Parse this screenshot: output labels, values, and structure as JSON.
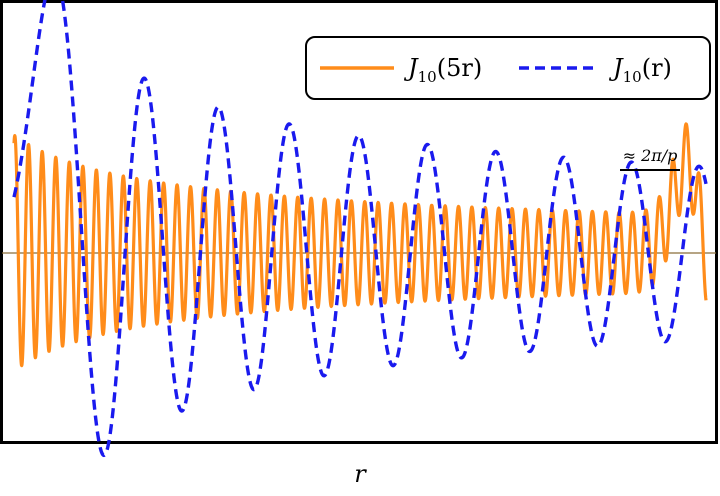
{
  "chart_data": {
    "type": "line",
    "xlabel": "r",
    "ylabel": "",
    "xlim": [
      8,
      73
    ],
    "ylim": [
      -0.2,
      0.25
    ],
    "grid": false,
    "axis_line_y": 0,
    "legend_position": "top-right",
    "series": [
      {
        "name": "J_10(5r)",
        "function": "J_10(5r)",
        "order": 10,
        "scale": 5,
        "color": "#ff8c1a",
        "line_style": "solid",
        "x_range": [
          8,
          73
        ],
        "sample_points": [
          {
            "x": 10.6,
            "y": 0.0
          },
          {
            "x": 11.1,
            "y": 0.0
          },
          {
            "x": 11.6,
            "y": 0.25
          },
          {
            "x": 12.2,
            "y": -0.18
          },
          {
            "x": 15.0,
            "y": 0.1
          },
          {
            "x": 25.0,
            "y": -0.07
          },
          {
            "x": 40.0,
            "y": 0.05
          },
          {
            "x": 60.0,
            "y": -0.04
          },
          {
            "x": 72.0,
            "y": 0.03
          }
        ]
      },
      {
        "name": "J_10(r)",
        "function": "J_10(r)",
        "order": 10,
        "scale": 1,
        "color": "#1a1aee",
        "line_style": "dashed",
        "x_range": [
          8,
          73
        ],
        "sample_points": [
          {
            "x": 12.0,
            "y": 0.0
          },
          {
            "x": 19.0,
            "y": 0.25
          },
          {
            "x": 24.3,
            "y": -0.18
          },
          {
            "x": 30.0,
            "y": 0.15
          },
          {
            "x": 35.0,
            "y": -0.14
          },
          {
            "x": 42.0,
            "y": 0.11
          },
          {
            "x": 50.0,
            "y": -0.09
          },
          {
            "x": 60.0,
            "y": 0.08
          },
          {
            "x": 72.0,
            "y": -0.06
          }
        ]
      }
    ],
    "annotations": [
      {
        "text": "≈ 2π/p",
        "marks": "one period of J_10(r) near the right edge"
      }
    ]
  },
  "legend": {
    "entries": [
      {
        "base": "J",
        "sub": "10",
        "arg": "(5r)",
        "color": "#ff8c1a",
        "style": "solid"
      },
      {
        "base": "J",
        "sub": "10",
        "arg": "(r)",
        "color": "#1a1aee",
        "style": "dashed"
      }
    ]
  }
}
